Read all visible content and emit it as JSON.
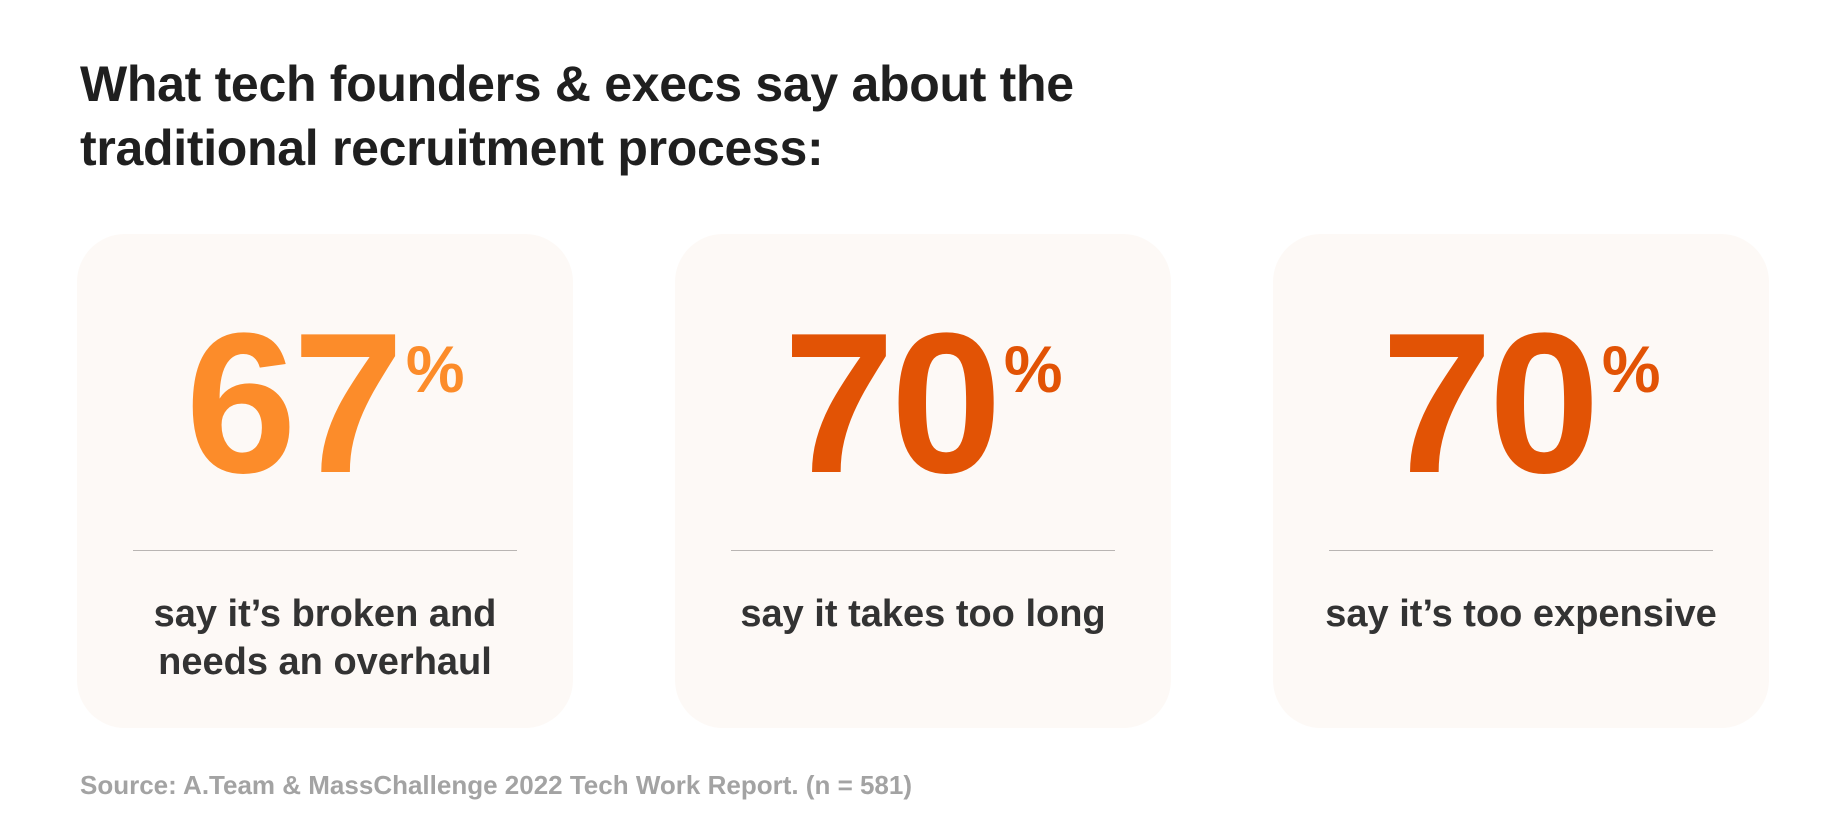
{
  "header": {
    "title": "What tech founders & execs say about the traditional recruitment process:"
  },
  "colors": {
    "accent_light": "#fc8c2a",
    "accent_dark": "#e25305"
  },
  "stats": [
    {
      "value": "67",
      "unit": "%",
      "caption": "say it’s broken and needs an overhaul"
    },
    {
      "value": "70",
      "unit": "%",
      "caption": "say it takes too long"
    },
    {
      "value": "70",
      "unit": "%",
      "caption": "say it’s too expensive"
    }
  ],
  "footer": {
    "source": "Source: A.Team & MassChallenge 2022 Tech Work Report. (n = 581)"
  }
}
